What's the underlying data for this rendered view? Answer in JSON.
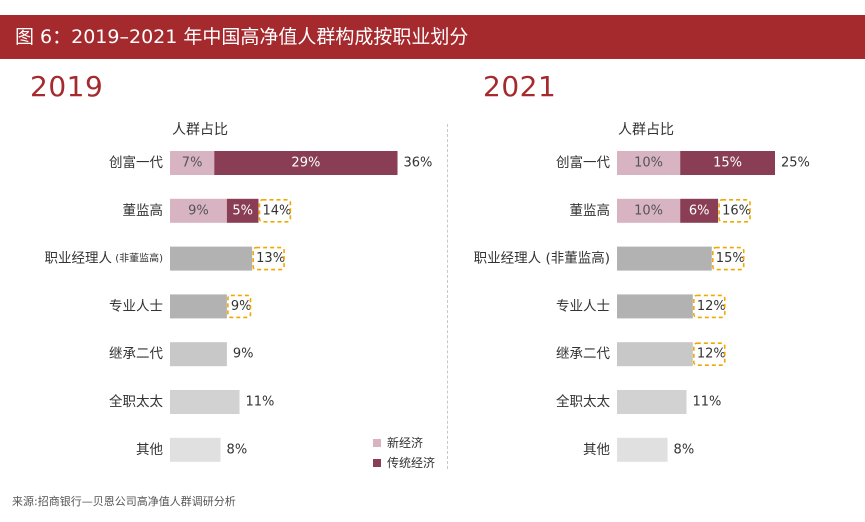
{
  "title": "图 6：2019–2021 年中国高净值人群构成按职业划分",
  "source": "来源:招商银行—贝恩公司高净值人群调研分析",
  "colors": {
    "accent": "#a52a2e",
    "new_economy": "#d8b4c3",
    "traditional_economy": "#8a3e55",
    "single_series": [
      "#8c8c8c",
      "#b2b2b2",
      "#b2b2b2",
      "#c8c8c8",
      "#d2d2d2",
      "#e0e0e0"
    ],
    "highlight_border": "#f0a800"
  },
  "chart_data": {
    "type": "bar",
    "orientation": "horizontal",
    "stacked": true,
    "column_header": "人群占比",
    "legend": [
      "新经济",
      "传统经济"
    ],
    "panels": [
      {
        "year": "2019",
        "rows": [
          {
            "label": "创富一代",
            "segments": [
              7,
              29
            ],
            "total": 36,
            "total_label": "36%",
            "segment_labels": [
              "7%",
              "29%"
            ],
            "highlighted": false
          },
          {
            "label": "董监高",
            "segments": [
              9,
              5
            ],
            "total": 14,
            "total_label": "14%",
            "segment_labels": [
              "9%",
              "5%"
            ],
            "highlighted": true
          },
          {
            "label": "职业经理人",
            "sublabel": "(非董监高)",
            "value": 13,
            "total_label": "13%",
            "highlighted": true
          },
          {
            "label": "专业人士",
            "value": 9,
            "total_label": "9%",
            "highlighted": true
          },
          {
            "label": "继承二代",
            "value": 9,
            "total_label": "9%",
            "highlighted": false
          },
          {
            "label": "全职太太",
            "value": 11,
            "total_label": "11%",
            "highlighted": false
          },
          {
            "label": "其他",
            "value": 8,
            "total_label": "8%",
            "highlighted": false
          }
        ]
      },
      {
        "year": "2021",
        "rows": [
          {
            "label": "创富一代",
            "segments": [
              10,
              15
            ],
            "total": 25,
            "total_label": "25%",
            "segment_labels": [
              "10%",
              "15%"
            ],
            "highlighted": false
          },
          {
            "label": "董监高",
            "segments": [
              10,
              6
            ],
            "total": 16,
            "total_label": "16%",
            "segment_labels": [
              "10%",
              "6%"
            ],
            "highlighted": true
          },
          {
            "label": "职业经理人 (非董监高)",
            "value": 15,
            "total_label": "15%",
            "highlighted": true
          },
          {
            "label": "专业人士",
            "value": 12,
            "total_label": "12%",
            "highlighted": true
          },
          {
            "label": "继承二代",
            "value": 12,
            "total_label": "12%",
            "highlighted": true
          },
          {
            "label": "全职太太",
            "value": 11,
            "total_label": "11%",
            "highlighted": false
          },
          {
            "label": "其他",
            "value": 8,
            "total_label": "8%",
            "highlighted": false
          }
        ]
      }
    ]
  }
}
